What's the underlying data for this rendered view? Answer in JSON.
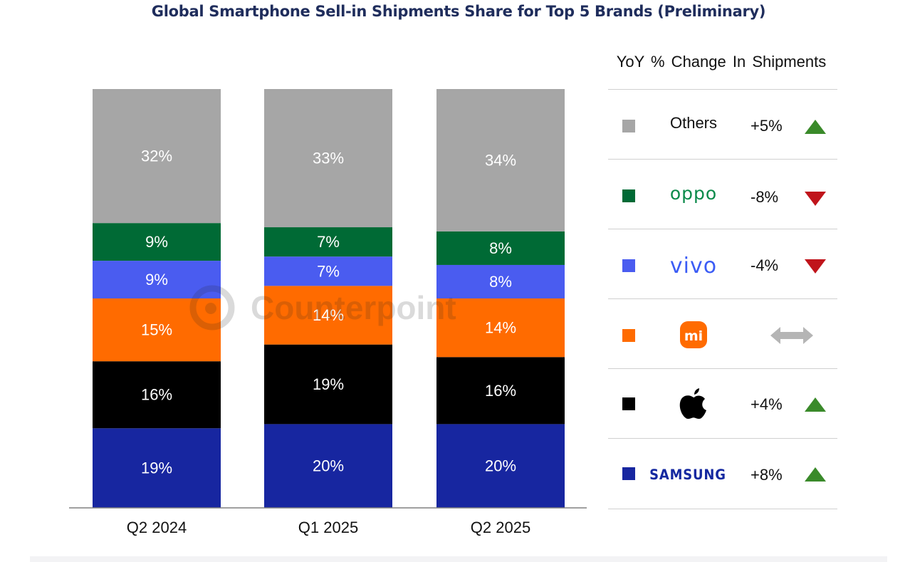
{
  "title": "Global Smartphone Sell-in Shipments Share for Top 5 Brands (Preliminary)",
  "watermark_text": "Counterpoint",
  "chart_data": {
    "type": "bar",
    "stacked": true,
    "normalized": true,
    "title": "Global Smartphone Sell-in Shipments Share for Top 5 Brands (Preliminary)",
    "categories": [
      "Q2 2024",
      "Q1 2025",
      "Q2 2025"
    ],
    "ylim": [
      0,
      100
    ],
    "xlabel": "",
    "ylabel": "",
    "series": [
      {
        "name": "Samsung",
        "color": "#1726a0",
        "values": [
          19,
          20,
          20
        ],
        "labels": [
          "19%",
          "20%",
          "20%"
        ]
      },
      {
        "name": "Apple",
        "color": "#000000",
        "values": [
          16,
          19,
          16
        ],
        "labels": [
          "16%",
          "19%",
          "16%"
        ]
      },
      {
        "name": "Xiaomi",
        "color": "#ff6b00",
        "values": [
          15,
          14,
          14
        ],
        "labels": [
          "15%",
          "14%",
          "14%"
        ]
      },
      {
        "name": "vivo",
        "color": "#4a5cf0",
        "values": [
          9,
          7,
          8
        ],
        "labels": [
          "9%",
          "7%",
          "8%"
        ]
      },
      {
        "name": "OPPO",
        "color": "#006a35",
        "values": [
          9,
          7,
          8
        ],
        "labels": [
          "9%",
          "7%",
          "8%"
        ]
      },
      {
        "name": "Others",
        "color": "#a6a6a6",
        "values": [
          32,
          33,
          34
        ],
        "labels": [
          "32%",
          "33%",
          "34%"
        ]
      }
    ]
  },
  "legend": {
    "title": "YoY % Change In Shipments",
    "items": [
      {
        "brand": "Others",
        "brand_display": "text",
        "color": "#a6a6a6",
        "change": "+5%",
        "trend": "up"
      },
      {
        "brand": "oppo",
        "brand_display": "logo",
        "color": "#006a35",
        "change": "-8%",
        "trend": "down"
      },
      {
        "brand": "vivo",
        "brand_display": "logo",
        "color": "#4a5cf0",
        "change": "-4%",
        "trend": "down"
      },
      {
        "brand": "mi",
        "brand_display": "logo",
        "color": "#ff6b00",
        "change": "",
        "trend": "flat"
      },
      {
        "brand": "apple",
        "brand_display": "logo",
        "color": "#000000",
        "change": "+4%",
        "trend": "up"
      },
      {
        "brand": "SAMSUNG",
        "brand_display": "logo",
        "color": "#1726a0",
        "change": "+8%",
        "trend": "up"
      }
    ]
  },
  "colors": {
    "title": "#1f2d5c",
    "up_arrow": "#3a8a2a",
    "down_arrow": "#c0141b",
    "flat_arrow": "#b5b5b5"
  }
}
